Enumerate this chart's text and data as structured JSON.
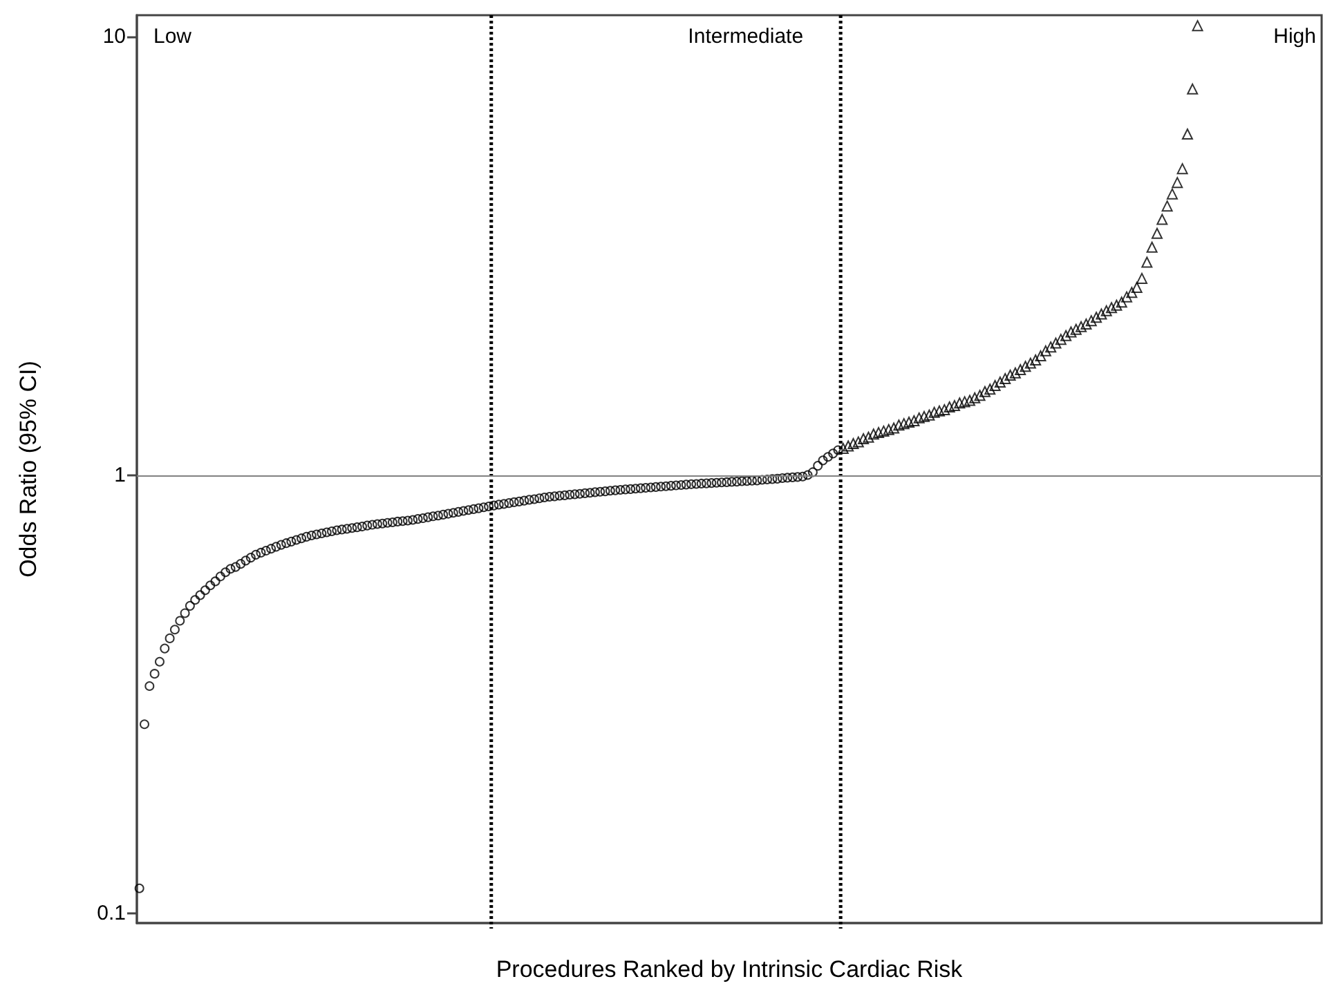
{
  "chart_data": {
    "type": "scatter",
    "xlabel": "Procedures Ranked by Intrinsic Cardiac Risk",
    "ylabel": "Odds Ratio (95% CI)",
    "log": "y",
    "tick_labels": "y",
    "ylim": [
      0.095,
      11.2
    ],
    "yticks": [
      0.1,
      1,
      10
    ],
    "categories": [
      null,
      null,
      null,
      null,
      null,
      null,
      null,
      null,
      null,
      null,
      null,
      null,
      null,
      null,
      null,
      null,
      null,
      null,
      null,
      null,
      null,
      null,
      null,
      null,
      null,
      null,
      null,
      null,
      null,
      null,
      null,
      null,
      null,
      null,
      null,
      null,
      null,
      null,
      null,
      null,
      null,
      null,
      null,
      null,
      null,
      null,
      null,
      null,
      null,
      null,
      null,
      null,
      null,
      null,
      null,
      null,
      null,
      null,
      null,
      null,
      null,
      null,
      null,
      null,
      null,
      null,
      null,
      null,
      null,
      null,
      null,
      null,
      null,
      null,
      null,
      null,
      null,
      null,
      null,
      null,
      null,
      null,
      null,
      null,
      null,
      null,
      null,
      null,
      null,
      null,
      null,
      null,
      null,
      null,
      null,
      null,
      null,
      null,
      null,
      null,
      null,
      null,
      null,
      null,
      null,
      null,
      null,
      null,
      null,
      null,
      null,
      null,
      null,
      null,
      null,
      null,
      null,
      null,
      null,
      null,
      null,
      null,
      null,
      null,
      null,
      null,
      null,
      null,
      null,
      null,
      null,
      null,
      null,
      null,
      null,
      null,
      null,
      null,
      null,
      null,
      null,
      null,
      null,
      null,
      null,
      null,
      null,
      null,
      null,
      null,
      null,
      null,
      null,
      null,
      null,
      null,
      null,
      null,
      null,
      null,
      null,
      null,
      null,
      null,
      null,
      null,
      null,
      null,
      null,
      null,
      null,
      null,
      null,
      null,
      null,
      null,
      null,
      null,
      null,
      null,
      null,
      null,
      null,
      null,
      null,
      null,
      null,
      null,
      null,
      null,
      null,
      null,
      null,
      null,
      null,
      null,
      null,
      null,
      null,
      null,
      null,
      null,
      null,
      null,
      null,
      null,
      null,
      null,
      null,
      null,
      null,
      null,
      null,
      null,
      null,
      null,
      null,
      null,
      null,
      null,
      null,
      null,
      null,
      null,
      null,
      null,
      null,
      null,
      null,
      null,
      null,
      null,
      null,
      null
    ],
    "annotations": [
      "Low",
      "Intermediate",
      "High"
    ],
    "ref_lines": [
      {
        "axis": "y",
        "value": 1,
        "color": "#808080",
        "line_style": "solid"
      }
    ],
    "series": [
      {
        "color": "#000000",
        "marker": "circle",
        "values": [
          0.114,
          0.27,
          0.33,
          0.352,
          0.375,
          0.402,
          0.424,
          0.444,
          0.465,
          0.484,
          0.503,
          0.519,
          0.532,
          0.546,
          0.56,
          0.572,
          0.587,
          0.6,
          0.611,
          0.617,
          0.627,
          0.638,
          0.648,
          0.658,
          0.665,
          0.672,
          0.679,
          0.686,
          0.693,
          0.699,
          0.705,
          0.711,
          0.717,
          0.723,
          0.728,
          0.732,
          0.736,
          0.74,
          0.744,
          0.748,
          0.751,
          0.754,
          0.757,
          0.76,
          0.763,
          0.767,
          0.77,
          0.773,
          0.775,
          0.778,
          0.78,
          0.783,
          0.785,
          0.787,
          0.79,
          0.794,
          0.797,
          0.801,
          0.805,
          0.808,
          0.812,
          0.816,
          0.82,
          0.824,
          0.828,
          0.832,
          0.836,
          0.84,
          0.844,
          0.848,
          null,
          null,
          null,
          null,
          null,
          null,
          null,
          null,
          null,
          null,
          null,
          null,
          null,
          null,
          null,
          null,
          null,
          null,
          null,
          null,
          null,
          null,
          null,
          null,
          null,
          null,
          null,
          null,
          null,
          null,
          null,
          null,
          null,
          null,
          null,
          null,
          null,
          null,
          null,
          null,
          null,
          null,
          null,
          null,
          null,
          null,
          null,
          null,
          null,
          null,
          null,
          null,
          null,
          null,
          null,
          null,
          null,
          null,
          null,
          null,
          null,
          null,
          null,
          null,
          null,
          null,
          null,
          null,
          null,
          null,
          null,
          null,
          null,
          null,
          null,
          null,
          null,
          null,
          null,
          null,
          null,
          null,
          null,
          null,
          null,
          null,
          null,
          null,
          null,
          null,
          null,
          null,
          null,
          null,
          null,
          null,
          null,
          null,
          null,
          null,
          null,
          null,
          null,
          null,
          null,
          null,
          null,
          null,
          null,
          null,
          null,
          null,
          null,
          null,
          null,
          null,
          null,
          null,
          null,
          null,
          null,
          null,
          null,
          null,
          null,
          null,
          null,
          null,
          null,
          null,
          null,
          null,
          null,
          null,
          null,
          null,
          null,
          null,
          null,
          null,
          null,
          null,
          null,
          null,
          null,
          null,
          null,
          null,
          null,
          null,
          null,
          null,
          null,
          null,
          null,
          null,
          null,
          null,
          null,
          null,
          null,
          null,
          null,
          null
        ]
      },
      {
        "color": "#000000",
        "marker": "circle",
        "values": [
          null,
          null,
          null,
          null,
          null,
          null,
          null,
          null,
          null,
          null,
          null,
          null,
          null,
          null,
          null,
          null,
          null,
          null,
          null,
          null,
          null,
          null,
          null,
          null,
          null,
          null,
          null,
          null,
          null,
          null,
          null,
          null,
          null,
          null,
          null,
          null,
          null,
          null,
          null,
          null,
          null,
          null,
          null,
          null,
          null,
          null,
          null,
          null,
          null,
          null,
          null,
          null,
          null,
          null,
          null,
          null,
          null,
          null,
          null,
          null,
          null,
          null,
          null,
          null,
          null,
          null,
          null,
          null,
          null,
          null,
          0.852,
          0.856,
          0.859,
          0.863,
          0.867,
          0.87,
          0.874,
          0.878,
          0.881,
          0.885,
          0.889,
          0.892,
          0.894,
          0.897,
          0.899,
          0.902,
          0.904,
          0.906,
          0.909,
          0.911,
          0.914,
          0.916,
          0.918,
          0.921,
          0.923,
          0.925,
          0.927,
          0.929,
          0.931,
          0.933,
          0.935,
          0.937,
          0.939,
          0.941,
          0.943,
          0.945,
          0.947,
          0.949,
          0.951,
          0.953,
          0.954,
          0.956,
          0.957,
          0.959,
          0.96,
          0.962,
          0.963,
          0.965,
          0.966,
          0.968,
          0.969,
          0.971,
          0.972,
          0.975,
          0.977,
          0.979,
          0.981,
          0.984,
          0.986,
          0.988,
          0.99,
          0.992,
          1.0,
          1.015,
          1.05,
          1.08,
          1.1,
          1.12,
          1.14,
          null,
          null,
          null,
          null,
          null,
          null,
          null,
          null,
          null,
          null,
          null,
          null,
          null,
          null,
          null,
          null,
          null,
          null,
          null,
          null,
          null,
          null,
          null,
          null,
          null,
          null,
          null,
          null,
          null,
          null,
          null,
          null,
          null,
          null,
          null,
          null,
          null,
          null,
          null,
          null,
          null,
          null,
          null,
          null,
          null,
          null,
          null,
          null,
          null,
          null,
          null,
          null,
          null,
          null,
          null,
          null,
          null,
          null,
          null,
          null,
          null,
          null,
          null,
          null,
          null,
          null,
          null,
          null,
          null,
          null,
          null,
          null,
          null,
          null,
          null,
          null,
          null,
          null,
          null,
          null,
          null,
          null,
          null,
          null,
          null,
          null,
          null,
          null,
          null,
          null,
          null,
          null,
          null,
          null,
          null
        ]
      },
      {
        "color": "#000000",
        "marker": "triangle",
        "values": [
          null,
          null,
          null,
          null,
          null,
          null,
          null,
          null,
          null,
          null,
          null,
          null,
          null,
          null,
          null,
          null,
          null,
          null,
          null,
          null,
          null,
          null,
          null,
          null,
          null,
          null,
          null,
          null,
          null,
          null,
          null,
          null,
          null,
          null,
          null,
          null,
          null,
          null,
          null,
          null,
          null,
          null,
          null,
          null,
          null,
          null,
          null,
          null,
          null,
          null,
          null,
          null,
          null,
          null,
          null,
          null,
          null,
          null,
          null,
          null,
          null,
          null,
          null,
          null,
          null,
          null,
          null,
          null,
          null,
          null,
          null,
          null,
          null,
          null,
          null,
          null,
          null,
          null,
          null,
          null,
          null,
          null,
          null,
          null,
          null,
          null,
          null,
          null,
          null,
          null,
          null,
          null,
          null,
          null,
          null,
          null,
          null,
          null,
          null,
          null,
          null,
          null,
          null,
          null,
          null,
          null,
          null,
          null,
          null,
          null,
          null,
          null,
          null,
          null,
          null,
          null,
          null,
          null,
          null,
          null,
          null,
          null,
          null,
          null,
          null,
          null,
          null,
          null,
          null,
          null,
          null,
          null,
          null,
          null,
          null,
          null,
          null,
          null,
          null,
          1.15,
          1.165,
          1.18,
          1.19,
          1.21,
          1.22,
          1.24,
          1.25,
          1.26,
          1.27,
          1.28,
          1.3,
          1.31,
          1.32,
          1.33,
          1.35,
          1.36,
          1.37,
          1.39,
          1.4,
          1.41,
          1.43,
          1.44,
          1.46,
          1.47,
          1.48,
          1.5,
          1.52,
          1.55,
          1.57,
          1.6,
          1.63,
          1.66,
          1.69,
          1.71,
          1.74,
          1.77,
          1.8,
          1.83,
          1.87,
          1.92,
          1.96,
          2.0,
          2.04,
          2.08,
          2.12,
          2.15,
          2.18,
          2.21,
          2.25,
          2.29,
          2.33,
          2.37,
          2.41,
          2.44,
          2.48,
          2.55,
          2.61,
          2.68,
          2.81,
          3.06,
          3.31,
          3.56,
          3.83,
          4.11,
          4.38,
          4.65,
          5.0,
          6.0,
          7.6,
          10.6,
          null,
          null,
          null,
          null,
          null,
          null,
          null,
          null,
          null,
          null,
          null,
          null,
          null,
          null,
          null,
          null,
          null,
          null,
          null,
          null,
          null,
          null,
          null,
          null
        ]
      }
    ]
  }
}
